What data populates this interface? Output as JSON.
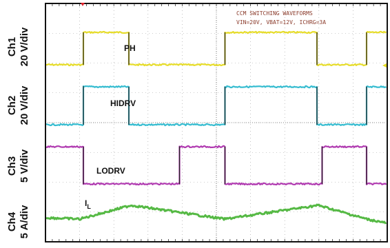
{
  "chart_data": {
    "type": "line",
    "title": "",
    "annotation": [
      "CCM SWITCHING WAVEFORMS",
      "VIN=20V, VBAT=12V, ICHRG=3A"
    ],
    "x": {
      "divisions": 10
    },
    "grid": true,
    "background_color": "#ffffff",
    "channels": [
      {
        "id": "ch1",
        "name": "Ch1",
        "scale": "20 V/div",
        "color": "#e6dc2a",
        "signal_label": "PH",
        "high_intervals": [
          [
            0.0,
            0.32
          ],
          [
            1.0,
            1.65
          ],
          [
            2.0,
            2.65
          ]
        ],
        "level_low": 0,
        "level_high": 1
      },
      {
        "id": "ch2",
        "name": "Ch2",
        "scale": "20 V/div",
        "color": "#35bcd0",
        "signal_label": "HIDRV",
        "high_intervals": [
          [
            0.0,
            0.32
          ],
          [
            1.0,
            1.65
          ],
          [
            2.0,
            2.65
          ]
        ],
        "level_low": 0,
        "level_high": 1
      },
      {
        "id": "ch3",
        "name": "Ch3",
        "scale": "5 V/div",
        "color": "#b03ab0",
        "signal_label": "LODRV",
        "high_intervals": [
          [
            -0.35,
            0.0
          ],
          [
            0.68,
            1.0
          ],
          [
            1.68,
            2.0
          ]
        ],
        "level_low": 0,
        "level_high": 1
      },
      {
        "id": "ch4",
        "name": "Ch4",
        "scale": "5 A/div",
        "color": "#55b944",
        "signal_label": "I",
        "signal_label_sub": "L",
        "shape": "triangle",
        "peak_phases": [
          0.34,
          1.66
        ],
        "valley_phases": [
          -0.02,
          1.0,
          2.0
        ]
      }
    ]
  }
}
